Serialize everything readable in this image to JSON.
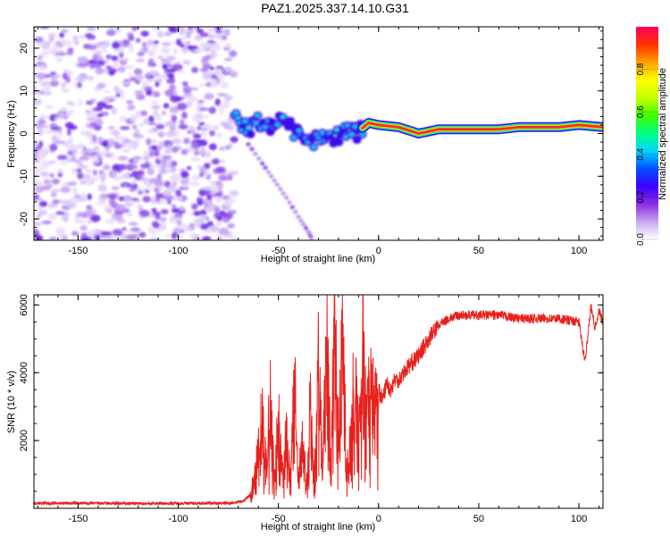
{
  "title": "PAZ1.2025.337.14.10.G31",
  "colors": {
    "snr_line": "#e8201c",
    "axis": "#000000",
    "ridge_core": "#e8102a"
  },
  "chart_data": [
    {
      "type": "heatmap",
      "name": "spectrogram",
      "xlabel": "Height of straight line (km)",
      "ylabel": "Frequency (Hz)",
      "xlim": [
        -172,
        112
      ],
      "ylim": [
        -25,
        25
      ],
      "xticks": [
        -150,
        -100,
        -50,
        0,
        50,
        100
      ],
      "yticks": [
        -20,
        -10,
        0,
        10,
        20
      ],
      "noise_region_x": [
        -172,
        -72
      ],
      "ridge": {
        "x": [
          -72,
          -65,
          -60,
          -55,
          -50,
          -45,
          -40,
          -35,
          -30,
          -25,
          -20,
          -15,
          -10,
          -5,
          0,
          10,
          20,
          30,
          40,
          50,
          60,
          70,
          80,
          90,
          100,
          112
        ],
        "freq": [
          4.0,
          1.0,
          3.0,
          1.5,
          4.0,
          2.0,
          0.0,
          -1.5,
          -2.0,
          -1.0,
          -0.5,
          0.0,
          0.5,
          2.5,
          2.0,
          1.5,
          0.0,
          1.0,
          1.0,
          1.0,
          1.0,
          1.5,
          1.5,
          1.5,
          2.0,
          1.5
        ]
      },
      "secondary_trace": {
        "x": [
          -65,
          -58,
          -52,
          -46,
          -40,
          -35,
          -33
        ],
        "freq": [
          -2.5,
          -7.0,
          -11.0,
          -15.0,
          -19.5,
          -23.0,
          -25.0
        ]
      },
      "colorbar": {
        "label": "Normalized spectral amplitude",
        "range": [
          0,
          1
        ],
        "ticks": [
          0.0,
          0.2,
          0.4,
          0.6,
          0.8
        ],
        "tick_labels": [
          "0.0",
          "0.2",
          "0.4",
          "0.6",
          "0.8"
        ],
        "stops": [
          "#ffffff",
          "#c8a8f0",
          "#8a2be2",
          "#3a00ff",
          "#0050ff",
          "#00d8ff",
          "#00ff80",
          "#40ff00",
          "#c8ff00",
          "#ffff00",
          "#ffa000",
          "#ff3000",
          "#ff0060"
        ]
      }
    },
    {
      "type": "line",
      "name": "snr",
      "xlabel": "Height of straight line (km)",
      "ylabel": "SNR (10 * v/v)",
      "xlim": [
        -172,
        112
      ],
      "ylim": [
        0,
        6300
      ],
      "xticks": [
        -150,
        -100,
        -50,
        0,
        50,
        100
      ],
      "yticks": [
        2000,
        4000,
        6000
      ],
      "x": [
        -172,
        -150,
        -120,
        -90,
        -75,
        -68,
        -64,
        -62,
        -60,
        -58,
        -56,
        -54,
        -52,
        -50,
        -48,
        -46,
        -44,
        -42,
        -40,
        -38,
        -36,
        -34,
        -32,
        -30,
        -28,
        -26,
        -24,
        -22,
        -20,
        -18,
        -16,
        -14,
        -12,
        -10,
        -8,
        -6,
        -4,
        -2,
        0,
        2,
        4,
        6,
        8,
        10,
        15,
        20,
        25,
        30,
        35,
        40,
        50,
        60,
        70,
        80,
        90,
        100,
        103,
        106,
        108,
        110,
        112
      ],
      "y": [
        150,
        150,
        140,
        150,
        150,
        200,
        400,
        900,
        1500,
        2600,
        1100,
        3000,
        900,
        2400,
        900,
        2100,
        1000,
        3500,
        800,
        2000,
        600,
        2900,
        900,
        4200,
        1000,
        5000,
        1600,
        4800,
        2600,
        4300,
        1300,
        2000,
        3900,
        1800,
        4500,
        2200,
        3900,
        2700,
        3500,
        3200,
        3700,
        3500,
        3800,
        3800,
        4200,
        4500,
        5000,
        5400,
        5600,
        5700,
        5700,
        5700,
        5600,
        5600,
        5600,
        5500,
        4300,
        6000,
        5300,
        5800,
        5500
      ]
    }
  ]
}
